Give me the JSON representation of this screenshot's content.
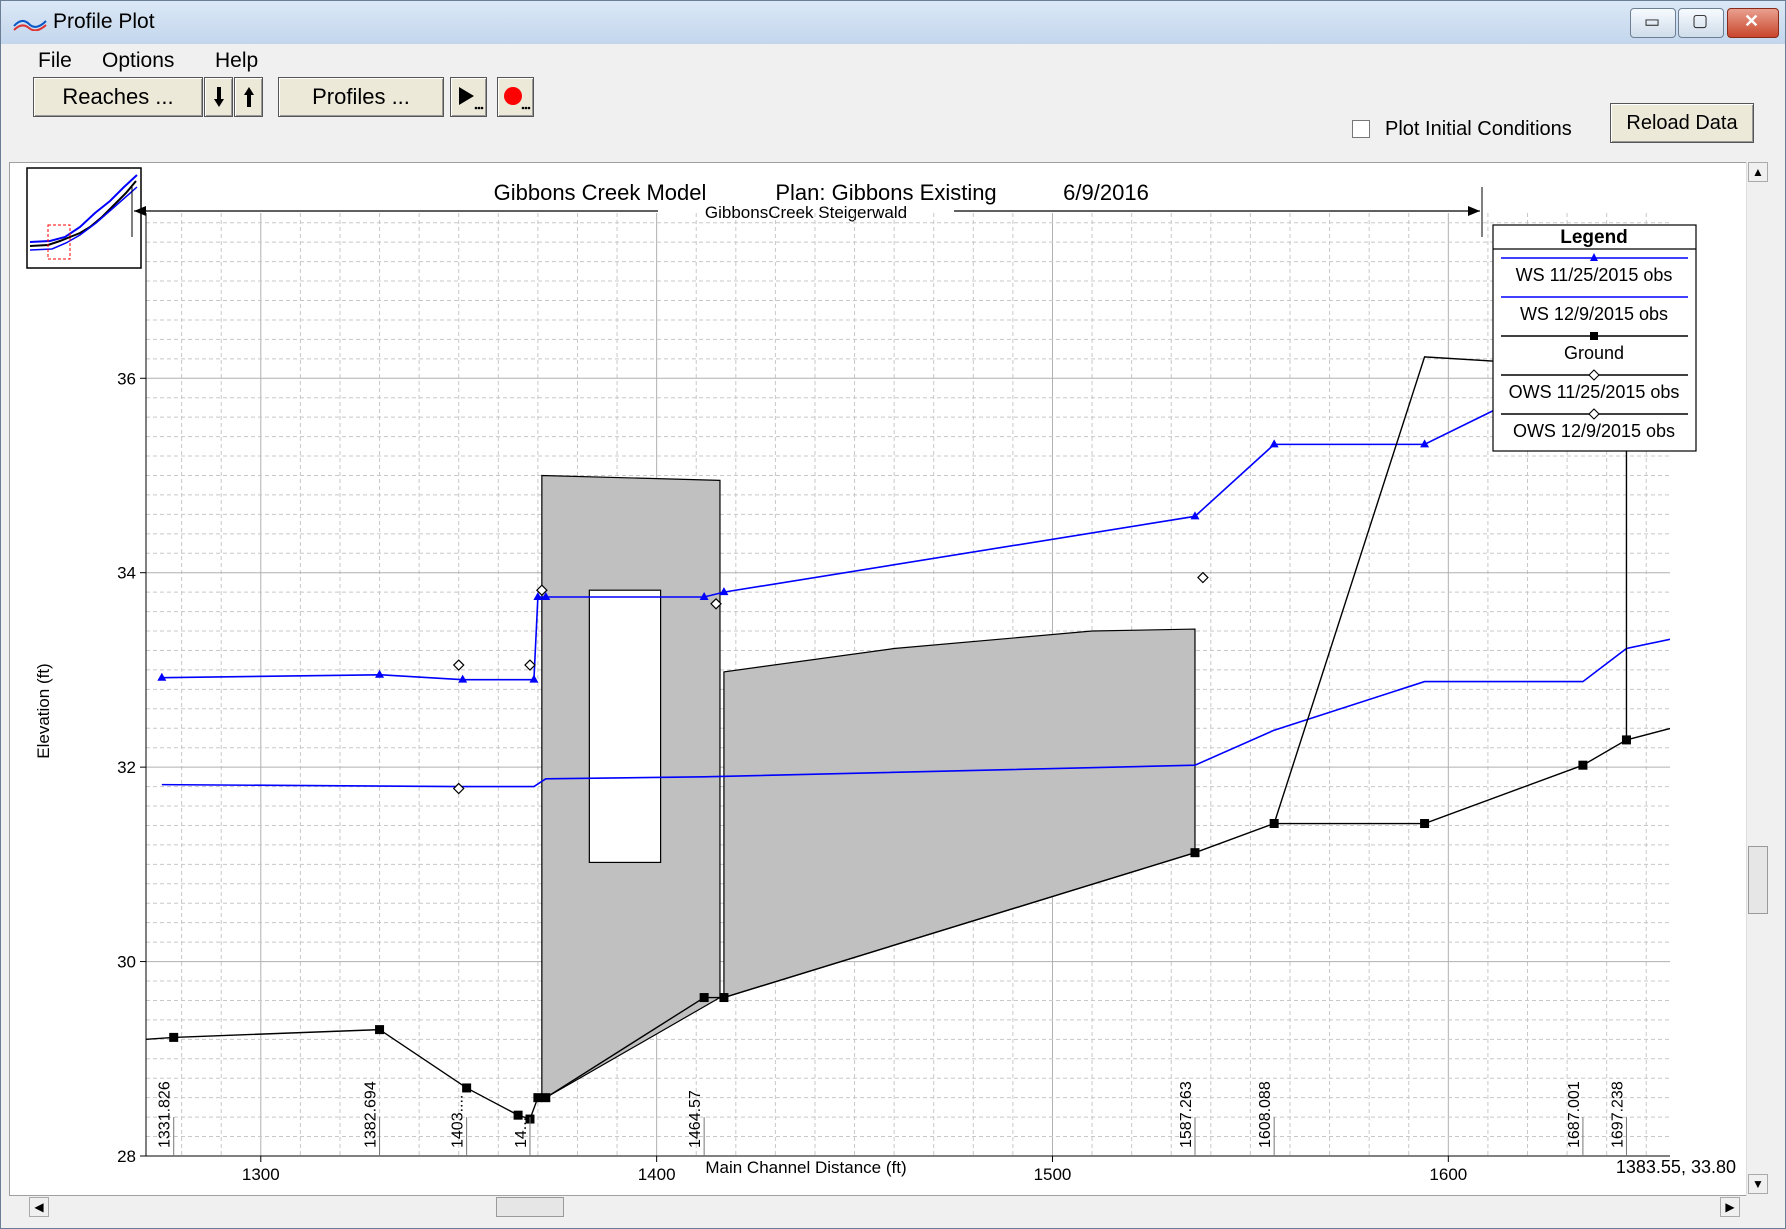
{
  "window": {
    "title": "Profile Plot",
    "minimize_glyph": "▭",
    "maximize_glyph": "▢",
    "close_glyph": "✕"
  },
  "menu": [
    {
      "label": "File"
    },
    {
      "label": "Options"
    },
    {
      "label": "Help"
    }
  ],
  "toolbar": {
    "reaches_label": "Reaches ...",
    "profiles_label": "Profiles ...",
    "plot_initial_conditions_label": "Plot Initial Conditions",
    "plot_initial_conditions_checked": false,
    "reload_label": "Reload Data"
  },
  "status": {
    "cursor_readout": "1383.55, 33.80"
  },
  "chart_data": {
    "type": "line",
    "title_parts": [
      "Gibbons Creek Model",
      "Plan: Gibbons Existing",
      "6/9/2016"
    ],
    "reach_label": "GibbonsCreek Steigerwald",
    "xlabel": "Main Channel Distance (ft)",
    "ylabel": "Elevation (ft)",
    "xlim": [
      1271,
      1656
    ],
    "ylim": [
      28,
      37.7
    ],
    "x_ticks": [
      1300,
      1400,
      1500,
      1600
    ],
    "y_ticks": [
      28,
      30,
      32,
      34,
      36
    ],
    "grid": true,
    "legend": {
      "title": "Legend",
      "placement": "right",
      "entries": [
        "WS  11/25/2015 obs",
        "WS  12/9/2015 obs",
        "Ground",
        "OWS  11/25/2015 obs",
        "OWS  12/9/2015 obs"
      ]
    },
    "colors": {
      "ws": "#0000ff",
      "ground": "#000000",
      "structure_fill": "#c0c0c0"
    },
    "series": [
      {
        "name": "WS  11/25/2015 obs",
        "marker": "triangle",
        "x": [
          1275,
          1330,
          1351,
          1369,
          1370,
          1372,
          1412,
          1417,
          1536,
          1556,
          1594,
          1634,
          1645,
          1660
        ],
        "y": [
          32.92,
          32.95,
          32.9,
          32.9,
          33.75,
          33.75,
          33.75,
          33.8,
          34.58,
          35.32,
          35.32,
          36.12,
          36.32,
          36.38
        ]
      },
      {
        "name": "WS  12/9/2015 obs",
        "marker": "none",
        "x": [
          1275,
          1350,
          1369,
          1372,
          1412,
          1536,
          1556,
          1594,
          1634,
          1645,
          1660
        ],
        "y": [
          31.82,
          31.8,
          31.8,
          31.88,
          31.9,
          32.02,
          32.38,
          32.88,
          32.88,
          33.22,
          33.35
        ]
      },
      {
        "name": "Ground",
        "marker": "square",
        "x": [
          1271,
          1278,
          1330,
          1352,
          1365,
          1368,
          1370,
          1372,
          1412,
          1417,
          1536,
          1556,
          1594,
          1634,
          1645,
          1660
        ],
        "y": [
          29.2,
          29.22,
          29.3,
          28.7,
          28.42,
          28.38,
          28.6,
          28.6,
          29.63,
          29.63,
          31.12,
          31.42,
          31.42,
          32.02,
          32.28,
          32.44
        ]
      },
      {
        "name": "OWS  11/25/2015 obs",
        "marker": "diamond",
        "x": [
          1350,
          1368,
          1371,
          1415,
          1538
        ],
        "y": [
          33.05,
          33.05,
          33.82,
          33.68,
          33.95
        ]
      },
      {
        "name": "OWS  12/9/2015 obs",
        "marker": "diamond",
        "x": [
          1350
        ],
        "y": [
          31.78
        ]
      }
    ],
    "channel_bank_line": {
      "x": [
        1556,
        1594,
        1634,
        1645,
        1645
      ],
      "y": [
        31.42,
        36.22,
        36.12,
        35.7,
        32.28
      ]
    },
    "structures": [
      {
        "kind": "bridge_deck",
        "x": [
          1371,
          1416
        ],
        "top": [
          35.0,
          34.95
        ]
      },
      {
        "kind": "culvert_opening",
        "x": [
          1383,
          1401
        ],
        "y": [
          31.02,
          33.82
        ]
      },
      {
        "kind": "weir",
        "x": [
          1417,
          1536
        ],
        "top_x": [
          1417,
          1460,
          1510,
          1536
        ],
        "top_y": [
          32.98,
          33.22,
          33.4,
          33.42
        ]
      }
    ],
    "stations": [
      {
        "label": "1331.826",
        "x": 1278
      },
      {
        "label": "1382.694",
        "x": 1330
      },
      {
        "label": "1403....",
        "x": 1352
      },
      {
        "label": "14...",
        "x": 1368
      },
      {
        "label": "1464.57",
        "x": 1412
      },
      {
        "label": "1587.263",
        "x": 1536
      },
      {
        "label": "1608.088",
        "x": 1556
      },
      {
        "label": "1687.001",
        "x": 1634
      },
      {
        "label": "1697.238",
        "x": 1645
      }
    ]
  }
}
